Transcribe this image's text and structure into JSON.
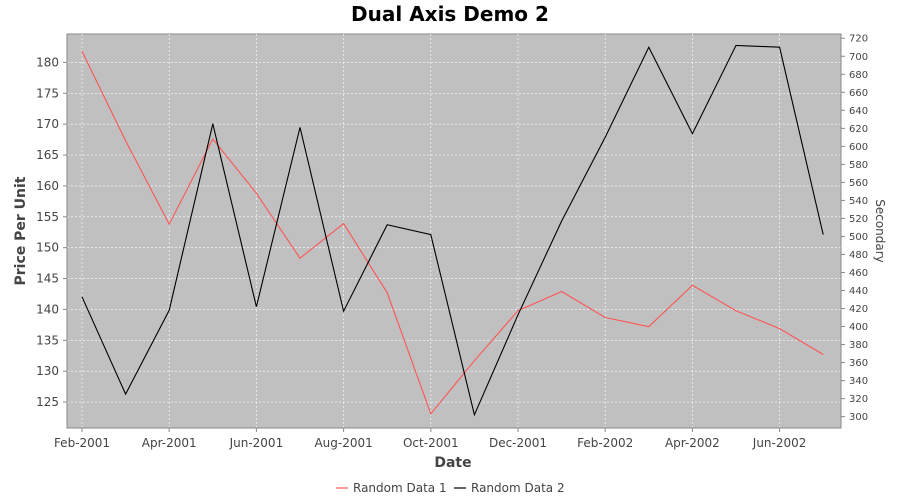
{
  "chart_data": {
    "type": "line",
    "title": "Dual Axis Demo 2",
    "xlabel": "Date",
    "ylabel": "Price Per Unit",
    "y2label": "Secondary",
    "background": "#c0c0c0",
    "grid": true,
    "legend_position": "bottom",
    "x_tick_labels": [
      "Feb-2001",
      "Apr-2001",
      "Jun-2001",
      "Aug-2001",
      "Oct-2001",
      "Dec-2001",
      "Feb-2002",
      "Apr-2002",
      "Jun-2002"
    ],
    "x": [
      "2001-02",
      "2001-03",
      "2001-04",
      "2001-05",
      "2001-06",
      "2001-07",
      "2001-08",
      "2001-09",
      "2001-10",
      "2001-11",
      "2001-12",
      "2002-01",
      "2002-02",
      "2002-03",
      "2002-04",
      "2002-05",
      "2002-06",
      "2002-07"
    ],
    "ylim": [
      120.8,
      184.6
    ],
    "y_ticks": [
      125,
      130,
      135,
      140,
      145,
      150,
      155,
      160,
      165,
      170,
      175,
      180
    ],
    "y2lim": [
      287.4,
      724.7
    ],
    "y2_ticks": [
      300,
      320,
      340,
      360,
      380,
      400,
      420,
      440,
      460,
      480,
      500,
      520,
      540,
      560,
      580,
      600,
      620,
      640,
      660,
      680,
      700,
      720
    ],
    "series": [
      {
        "name": "Random Data 1",
        "color": "#ff5555",
        "axis": "left",
        "values": [
          181.8,
          167.3,
          153.8,
          167.6,
          158.8,
          148.3,
          153.9,
          142.7,
          123.1,
          131.7,
          139.8,
          142.9,
          138.7,
          137.2,
          143.9,
          139.8,
          136.9,
          132.7
        ]
      },
      {
        "name": "Random Data 2",
        "color": "#000000",
        "axis": "right",
        "values": [
          433,
          325,
          418,
          625,
          422,
          621,
          417,
          513,
          502,
          302,
          413,
          517,
          610,
          710,
          614,
          712,
          710,
          502
        ]
      }
    ]
  }
}
